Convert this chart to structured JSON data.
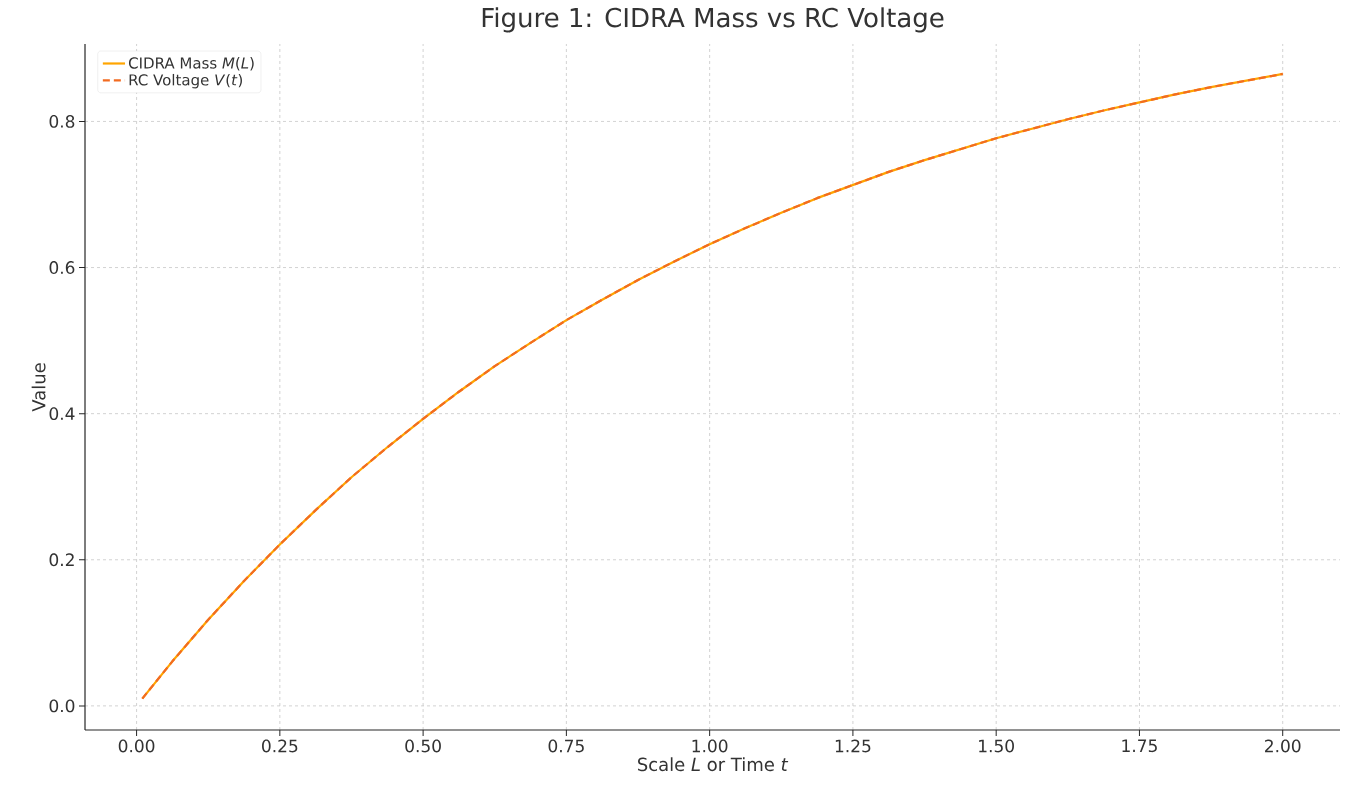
{
  "chart_data": {
    "type": "line",
    "title": "Figure 1: CIDRA Mass vs RC Voltage",
    "xlabel": "Scale *L* or Time *t*",
    "ylabel": "Value",
    "x": [
      0.01,
      0.0625,
      0.125,
      0.1875,
      0.25,
      0.3125,
      0.375,
      0.4375,
      0.5,
      0.5625,
      0.625,
      0.6875,
      0.75,
      0.8125,
      0.875,
      0.9375,
      1.0,
      1.0625,
      1.125,
      1.1875,
      1.25,
      1.3125,
      1.375,
      1.4375,
      1.5,
      1.5625,
      1.625,
      1.6875,
      1.75,
      1.8125,
      1.875,
      1.9375,
      2.0
    ],
    "series": [
      {
        "name": "CIDRA Mass *M*(*L*)",
        "color": "#ffa500",
        "line_style": "solid",
        "values": [
          0.01,
          0.061,
          0.118,
          0.171,
          0.221,
          0.268,
          0.313,
          0.354,
          0.393,
          0.43,
          0.465,
          0.497,
          0.528,
          0.556,
          0.583,
          0.608,
          0.632,
          0.654,
          0.675,
          0.695,
          0.713,
          0.731,
          0.747,
          0.762,
          0.777,
          0.79,
          0.803,
          0.815,
          0.826,
          0.837,
          0.847,
          0.856,
          0.865
        ]
      },
      {
        "name": "RC Voltage *V*(*t*)",
        "color": "#f26b21",
        "line_style": "dashed",
        "values": [
          0.01,
          0.061,
          0.118,
          0.171,
          0.221,
          0.268,
          0.313,
          0.354,
          0.393,
          0.43,
          0.465,
          0.497,
          0.528,
          0.556,
          0.583,
          0.608,
          0.632,
          0.654,
          0.675,
          0.695,
          0.713,
          0.731,
          0.747,
          0.762,
          0.777,
          0.79,
          0.803,
          0.815,
          0.826,
          0.837,
          0.847,
          0.856,
          0.865
        ]
      }
    ],
    "xlim": [
      -0.09,
      2.1
    ],
    "ylim": [
      -0.033,
      0.906
    ],
    "xticks": [
      {
        "value": 0,
        "label": "0.00"
      },
      {
        "value": 0.25,
        "label": "0.25"
      },
      {
        "value": 0.5,
        "label": "0.50"
      },
      {
        "value": 0.75,
        "label": "0.75"
      },
      {
        "value": 1,
        "label": "1.00"
      },
      {
        "value": 1.25,
        "label": "1.25"
      },
      {
        "value": 1.5,
        "label": "1.50"
      },
      {
        "value": 1.75,
        "label": "1.75"
      },
      {
        "value": 2,
        "label": "2.00"
      }
    ],
    "yticks": [
      {
        "value": 0,
        "label": "0.0"
      },
      {
        "value": 0.2,
        "label": "0.2"
      },
      {
        "value": 0.4,
        "label": "0.4"
      },
      {
        "value": 0.6,
        "label": "0.6"
      },
      {
        "value": 0.8,
        "label": "0.8"
      }
    ],
    "grid": true,
    "legend": "top left"
  }
}
